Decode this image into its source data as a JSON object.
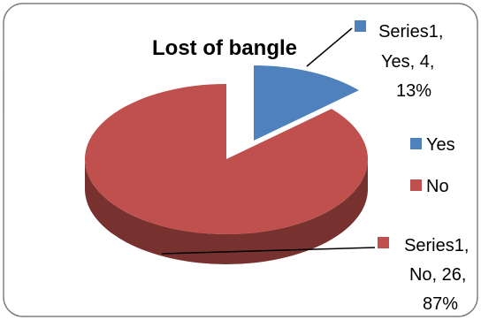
{
  "chart_data": {
    "type": "pie",
    "title": "Lost of bangle",
    "style": "3d-exploded",
    "categories": [
      "Yes",
      "No"
    ],
    "series": [
      {
        "name": "Series1",
        "values": [
          4,
          26
        ]
      }
    ],
    "percentages": [
      "13%",
      "87%"
    ],
    "colors": {
      "Yes": "#4f81bd",
      "No": "#c0504d"
    },
    "data_labels": [
      {
        "lines": [
          "Series1,",
          "Yes, 4,",
          "13%"
        ]
      },
      {
        "lines": [
          "Series1,",
          "No, 26,",
          "87%"
        ]
      }
    ],
    "legend": {
      "position": "right",
      "entries": [
        {
          "label": "Yes",
          "color": "#4f81bd"
        },
        {
          "label": "No",
          "color": "#c0504d"
        }
      ]
    }
  }
}
